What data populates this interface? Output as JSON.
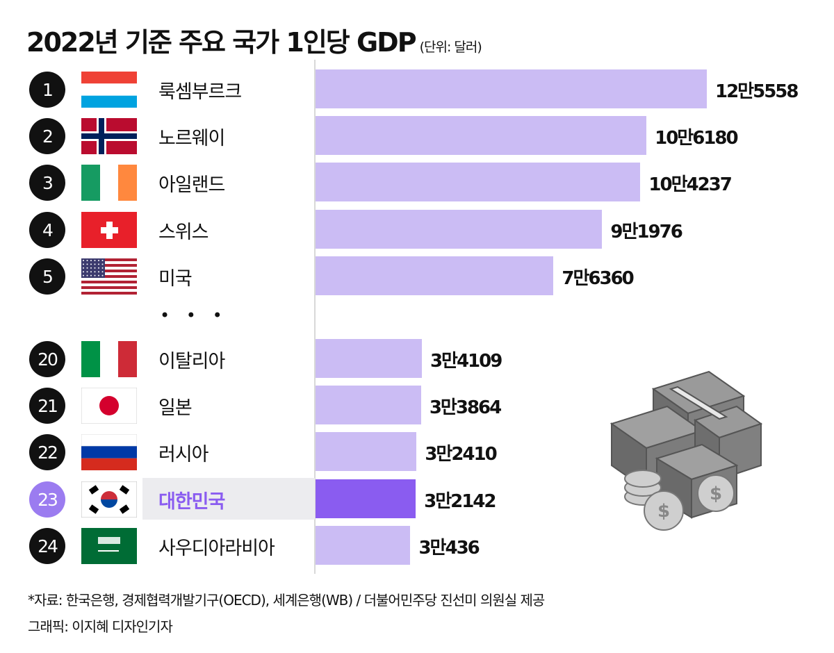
{
  "header": {
    "title": "2022년 기준 주요 국가 1인당 GDP",
    "unit": "(단위: 달러)"
  },
  "chart_data": {
    "type": "bar",
    "orientation": "horizontal",
    "title": "2022년 기준 주요 국가 1인당 GDP",
    "unit": "(단위: 달러)",
    "highlight": "대한민국",
    "colors": {
      "bar": "#cbbcf4",
      "highlight_bar": "#8a5cf0",
      "highlight_rank": "#9b7cf0",
      "highlight_text": "#8a5cf0"
    },
    "gap_marker": "• • •",
    "rows": [
      {
        "rank": "1",
        "country": "룩셈부르크",
        "flag": "luxembourg",
        "value": 125558,
        "label": "12만5558"
      },
      {
        "rank": "2",
        "country": "노르웨이",
        "flag": "norway",
        "value": 106180,
        "label": "10만6180"
      },
      {
        "rank": "3",
        "country": "아일랜드",
        "flag": "ireland",
        "value": 104237,
        "label": "10만4237"
      },
      {
        "rank": "4",
        "country": "스위스",
        "flag": "switzerland",
        "value": 91976,
        "label": "9만1976"
      },
      {
        "rank": "5",
        "country": "미국",
        "flag": "usa",
        "value": 76360,
        "label": "7만6360"
      },
      {
        "rank": "20",
        "country": "이탈리아",
        "flag": "italy",
        "value": 34109,
        "label": "3만4109"
      },
      {
        "rank": "21",
        "country": "일본",
        "flag": "japan",
        "value": 33864,
        "label": "3만3864"
      },
      {
        "rank": "22",
        "country": "러시아",
        "flag": "russia",
        "value": 32410,
        "label": "3만2410"
      },
      {
        "rank": "23",
        "country": "대한민국",
        "flag": "korea",
        "value": 32142,
        "label": "3만2142"
      },
      {
        "rank": "24",
        "country": "사우디아라비아",
        "flag": "saudi",
        "value": 30436,
        "label": "3만436"
      }
    ]
  },
  "footer": {
    "source": "*자료: 한국은행, 경제협력개발기구(OECD), 세계은행(WB) / 더불어민주당 진선미 의원실 제공",
    "credit": "그래픽: 이지혜 디자인기자"
  },
  "illustration": "money-stack-icon"
}
